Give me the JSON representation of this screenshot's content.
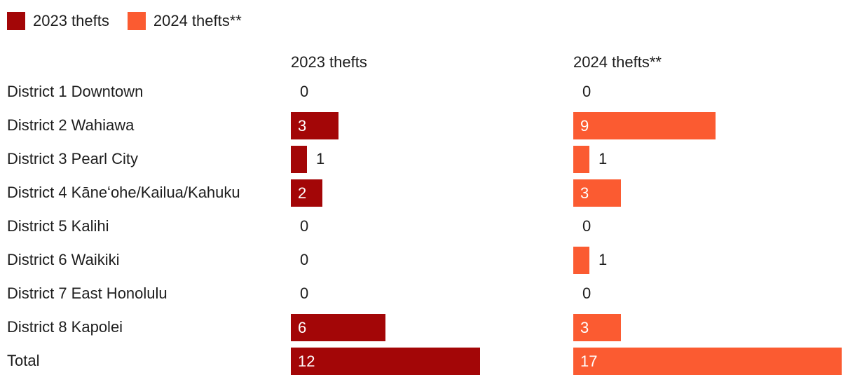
{
  "chart_data": {
    "type": "bar",
    "orientation": "horizontal",
    "title": "",
    "xlabel": "",
    "ylabel": "",
    "grid": false,
    "legend_position": "top-left",
    "value_labels": true,
    "xmax": 17,
    "categories": [
      "District 1 Downtown",
      "District 2 Wahiawa",
      "District 3 Pearl City",
      "District 4 Kāneʻohe/Kailua/Kahuku",
      "District 5 Kalihi",
      "District 6 Waikiki",
      "District 7 East Honolulu",
      "District 8 Kapolei",
      "Total"
    ],
    "series": [
      {
        "name": "2023 thefts",
        "color": "#a30607",
        "values": [
          0,
          3,
          1,
          2,
          0,
          0,
          0,
          6,
          12
        ]
      },
      {
        "name": "2024 thefts**",
        "color": "#fb5b31",
        "values": [
          0,
          9,
          1,
          3,
          0,
          1,
          0,
          3,
          17
        ]
      }
    ],
    "text_color": "#1d1d1d",
    "bar_label_inside_color": "#ffffff"
  }
}
